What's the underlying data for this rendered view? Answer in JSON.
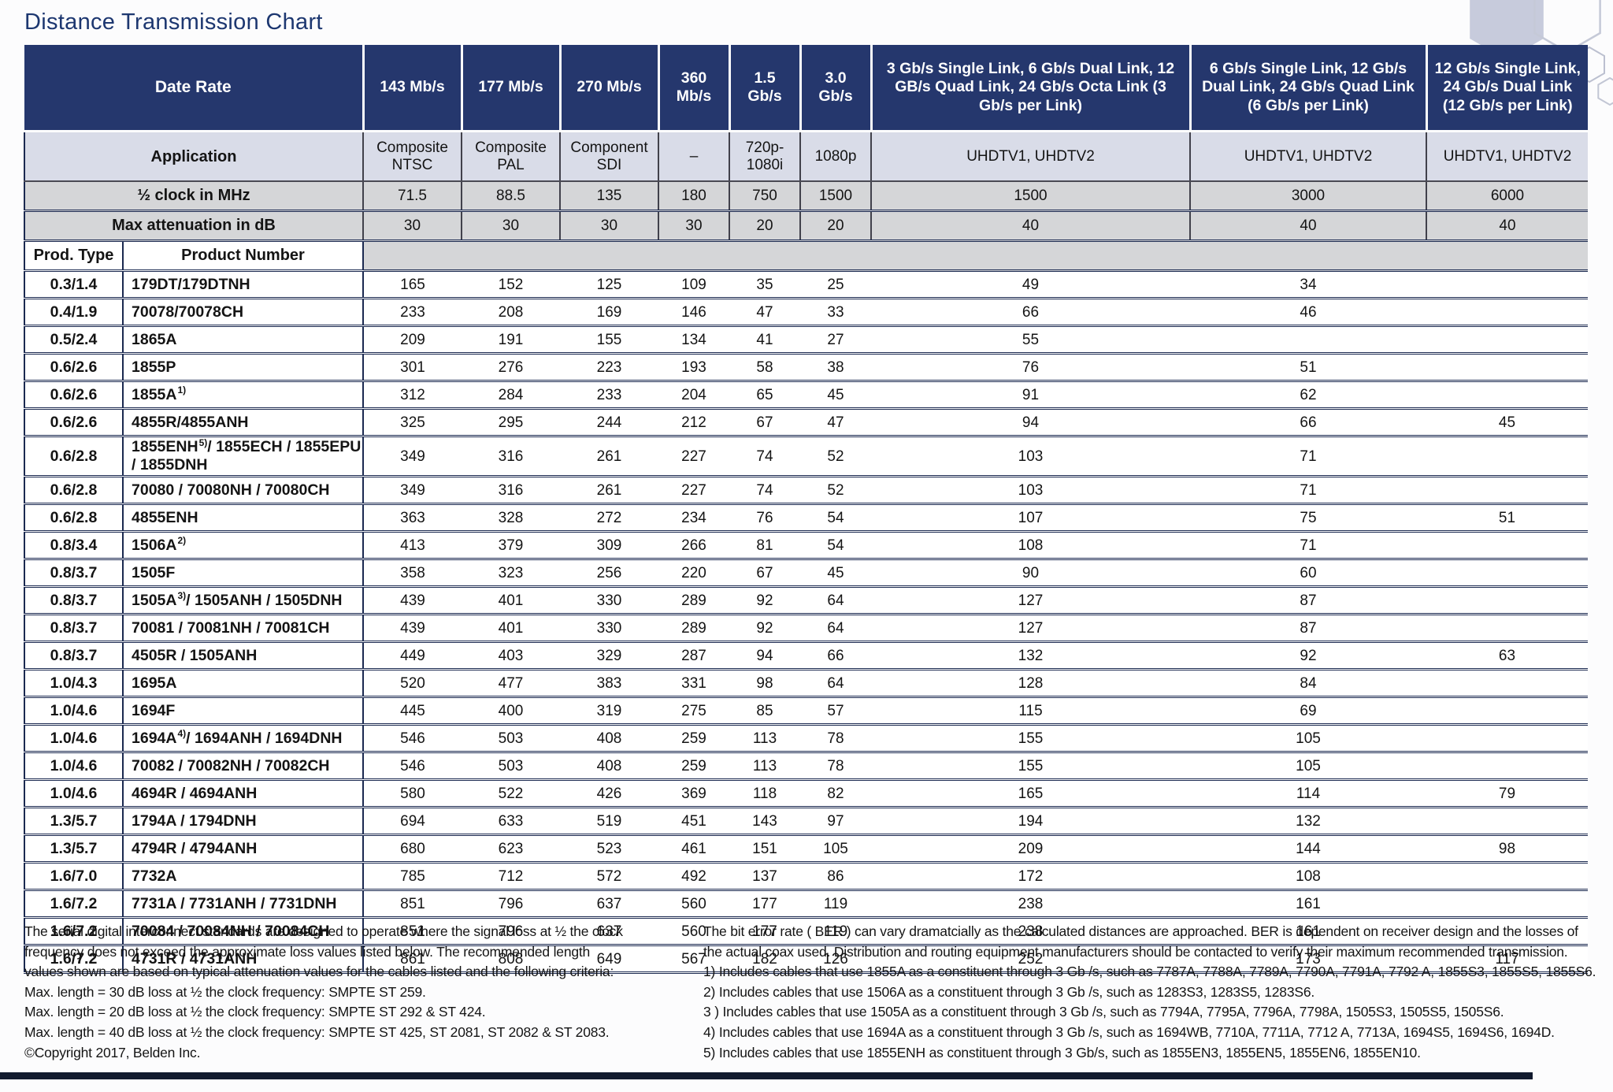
{
  "page": {
    "title": "Distance Transmission Chart"
  },
  "colors": {
    "header_navy": "#25376d",
    "application_row": "#d9dce8",
    "metric_row_gray": "#d5d6d8",
    "grid_line_navy": "#1b2950",
    "bottom_bar": "#111a2e",
    "hexagon_fill": "#c7cbdc",
    "title_navy": "#1d3770"
  },
  "table": {
    "corner_label": "Date Rate",
    "application_label": "Application",
    "clock_label": "½ clock in MHz",
    "attenuation_label": "Max attenuation in dB",
    "prod_type_label": "Prod. Type",
    "product_number_label": "Product Number",
    "columns": [
      {
        "rate": "143 Mb/s",
        "application": "Composite NTSC",
        "clock": "71.5",
        "attenuation": "30"
      },
      {
        "rate": "177 Mb/s",
        "application": "Composite PAL",
        "clock": "88.5",
        "attenuation": "30"
      },
      {
        "rate": "270 Mb/s",
        "application": "Component SDI",
        "clock": "135",
        "attenuation": "30"
      },
      {
        "rate": "360 Mb/s",
        "application": "–",
        "clock": "180",
        "attenuation": "30"
      },
      {
        "rate": "1.5 Gb/s",
        "application": "720p- 1080i",
        "clock": "750",
        "attenuation": "20"
      },
      {
        "rate": "3.0 Gb/s",
        "application": "1080p",
        "clock": "1500",
        "attenuation": "20"
      },
      {
        "rate": "3 Gb/s Single Link, 6 Gb/s Dual Link, 12 GB/s Quad Link, 24 Gb/s Octa Link (3 Gb/s per Link)",
        "application": "UHDTV1, UHDTV2",
        "clock": "1500",
        "attenuation": "40"
      },
      {
        "rate": "6 Gb/s Single Link, 12 Gb/s Dual Link, 24 Gb/s Quad Link (6 Gb/s per Link)",
        "application": "UHDTV1, UHDTV2",
        "clock": "3000",
        "attenuation": "40"
      },
      {
        "rate": "12 Gb/s Single Link, 24 Gb/s Dual Link (12 Gb/s per Link)",
        "application": "UHDTV1, UHDTV2",
        "clock": "6000",
        "attenuation": "40"
      }
    ],
    "rows": [
      {
        "t": "0.3/1.4",
        "p": "179DT/179DTNH",
        "v": [
          "165",
          "152",
          "125",
          "109",
          "35",
          "25",
          "49",
          "34",
          ""
        ]
      },
      {
        "t": "0.4/1.9",
        "p": "70078/70078CH",
        "v": [
          "233",
          "208",
          "169",
          "146",
          "47",
          "33",
          "66",
          "46",
          ""
        ]
      },
      {
        "t": "0.5/2.4",
        "p": "1865A",
        "v": [
          "209",
          "191",
          "155",
          "134",
          "41",
          "27",
          "55",
          "",
          ""
        ]
      },
      {
        "t": "0.6/2.6",
        "p": "1855P",
        "v": [
          "301",
          "276",
          "223",
          "193",
          "58",
          "38",
          "76",
          "51",
          ""
        ]
      },
      {
        "t": "0.6/2.6",
        "p": "1855A",
        "sup": "1)",
        "v": [
          "312",
          "284",
          "233",
          "204",
          "65",
          "45",
          "91",
          "62",
          ""
        ]
      },
      {
        "t": "0.6/2.6",
        "p": "4855R/4855ANH",
        "v": [
          "325",
          "295",
          "244",
          "212",
          "67",
          "47",
          "94",
          "66",
          "45"
        ]
      },
      {
        "t": "0.6/2.8",
        "p": "1855ENH",
        "sup": "5)",
        "p2": "/ 1855ECH / 1855EPU / 1855DNH",
        "v": [
          "349",
          "316",
          "261",
          "227",
          "74",
          "52",
          "103",
          "71",
          ""
        ]
      },
      {
        "t": "0.6/2.8",
        "p": "70080 / 70080NH / 70080CH",
        "v": [
          "349",
          "316",
          "261",
          "227",
          "74",
          "52",
          "103",
          "71",
          ""
        ]
      },
      {
        "t": "0.6/2.8",
        "p": "4855ENH",
        "v": [
          "363",
          "328",
          "272",
          "234",
          "76",
          "54",
          "107",
          "75",
          "51"
        ]
      },
      {
        "t": "0.8/3.4",
        "p": "1506A",
        "sup": "2)",
        "v": [
          "413",
          "379",
          "309",
          "266",
          "81",
          "54",
          "108",
          "71",
          ""
        ]
      },
      {
        "t": "0.8/3.7",
        "p": "1505F",
        "v": [
          "358",
          "323",
          "256",
          "220",
          "67",
          "45",
          "90",
          "60",
          ""
        ]
      },
      {
        "t": "0.8/3.7",
        "p": "1505A",
        "sup": "3)",
        "p2": "/ 1505ANH / 1505DNH",
        "v": [
          "439",
          "401",
          "330",
          "289",
          "92",
          "64",
          "127",
          "87",
          ""
        ]
      },
      {
        "t": "0.8/3.7",
        "p": "70081 / 70081NH / 70081CH",
        "v": [
          "439",
          "401",
          "330",
          "289",
          "92",
          "64",
          "127",
          "87",
          ""
        ]
      },
      {
        "t": "0.8/3.7",
        "p": "4505R / 1505ANH",
        "v": [
          "449",
          "403",
          "329",
          "287",
          "94",
          "66",
          "132",
          "92",
          "63"
        ]
      },
      {
        "t": "1.0/4.3",
        "p": "1695A",
        "v": [
          "520",
          "477",
          "383",
          "331",
          "98",
          "64",
          "128",
          "84",
          ""
        ]
      },
      {
        "t": "1.0/4.6",
        "p": "1694F",
        "v": [
          "445",
          "400",
          "319",
          "275",
          "85",
          "57",
          "115",
          "69",
          ""
        ]
      },
      {
        "t": "1.0/4.6",
        "p": "1694A",
        "sup": "4)",
        "p2": "/ 1694ANH / 1694DNH",
        "v": [
          "546",
          "503",
          "408",
          "259",
          "113",
          "78",
          "155",
          "105",
          ""
        ]
      },
      {
        "t": "1.0/4.6",
        "p": "70082 / 70082NH / 70082CH",
        "v": [
          "546",
          "503",
          "408",
          "259",
          "113",
          "78",
          "155",
          "105",
          ""
        ]
      },
      {
        "t": "1.0/4.6",
        "p": "4694R / 4694ANH",
        "v": [
          "580",
          "522",
          "426",
          "369",
          "118",
          "82",
          "165",
          "114",
          "79"
        ]
      },
      {
        "t": "1.3/5.7",
        "p": "1794A / 1794DNH",
        "v": [
          "694",
          "633",
          "519",
          "451",
          "143",
          "97",
          "194",
          "132",
          ""
        ]
      },
      {
        "t": "1.3/5.7",
        "p": "4794R / 4794ANH",
        "v": [
          "680",
          "623",
          "523",
          "461",
          "151",
          "105",
          "209",
          "144",
          "98"
        ]
      },
      {
        "t": "1.6/7.0",
        "p": "7732A",
        "v": [
          "785",
          "712",
          "572",
          "492",
          "137",
          "86",
          "172",
          "108",
          ""
        ]
      },
      {
        "t": "1.6/7.2",
        "p": "7731A / 7731ANH / 7731DNH",
        "v": [
          "851",
          "796",
          "637",
          "560",
          "177",
          "119",
          "238",
          "161",
          ""
        ]
      },
      {
        "t": "1.6/7.2",
        "p": "70084 / 70084NH / 70084CH",
        "v": [
          "851",
          "796",
          "637",
          "560",
          "177",
          "119",
          "238",
          "161",
          ""
        ]
      },
      {
        "t": "1.6/7.2",
        "p": "4731R / 4731ANH",
        "v": [
          "861",
          "808",
          "649",
          "567",
          "182",
          "126",
          "252",
          "173",
          "117"
        ]
      }
    ]
  },
  "footnotes_left": [
    "The serial digital interconnect standards are designed to operate where the signal loss at ½ the clock",
    "frequency does not exceed the approximate loss values listed below. The recommended length",
    "values shown are based on typical attenuation values for the cables listed and the following criteria:",
    "Max. length = 30 dB loss at ½ the clock frequency: SMPTE ST 259.",
    "Max. length = 20 dB loss at ½ the clock frequency: SMPTE ST 292 & ST 424.",
    "Max. length = 40 dB loss at ½ the clock frequency: SMPTE ST 425, ST 2081, ST 2082 & ST 2083.",
    "©Copyright 2017, Belden Inc."
  ],
  "footnotes_right": [
    "The bit error rate ( BER ) can vary dramatcially as the calculated distances are approached. BER is dependent on receiver design and the losses of",
    "the actual coax used. Distribution and routing equipment manufacturers should be contacted to verify their maximum recommended transmission.",
    "1) Includes cables that use 1855A as a constituent through 3 Gb /s, such as 7787A, 7788A, 7789A, 7790A, 7791A, 7792 A, 1855S3, 1855S5, 1855S6.",
    "2) Includes cables that use 1506A as a constituent through 3 Gb /s, such as 1283S3, 1283S5, 1283S6.",
    "3 ) Includes cables that use 1505A as a constituent through 3 Gb /s, such as 7794A, 7795A, 7796A, 7798A, 1505S3, 1505S5, 1505S6.",
    "4) Includes cables that use 1694A as a constituent through 3 Gb /s, such as 1694WB, 7710A, 7711A, 7712 A, 7713A, 1694S5, 1694S6, 1694D.",
    "5) Includes cables that use 1855ENH as constituent through 3 Gb/s, such as 1855EN3, 1855EN5, 1855EN6, 1855EN10."
  ]
}
